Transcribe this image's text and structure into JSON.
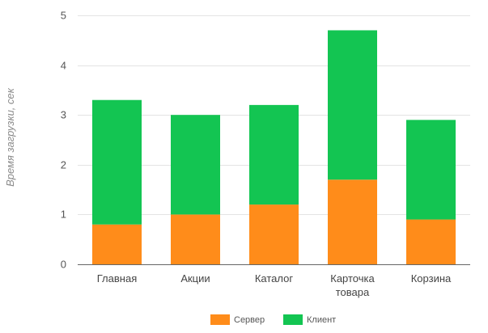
{
  "chart_data": {
    "type": "bar",
    "stacked": true,
    "title": "",
    "xlabel": "",
    "ylabel": "Время загрузки, сек",
    "ylim": [
      0,
      5
    ],
    "yticks": [
      0,
      1,
      2,
      3,
      4,
      5
    ],
    "grid": true,
    "legend_position": "bottom",
    "categories": [
      [
        "Главная"
      ],
      [
        "Акции"
      ],
      [
        "Каталог"
      ],
      [
        "Карточка",
        "товара"
      ],
      [
        "Корзина"
      ]
    ],
    "series": [
      {
        "name": "Сервер",
        "color": "#ff8c1a",
        "values": [
          0.8,
          1.0,
          1.2,
          1.7,
          0.9
        ]
      },
      {
        "name": "Клиент",
        "color": "#13c552",
        "values": [
          2.5,
          2.0,
          2.0,
          3.0,
          2.0
        ]
      }
    ]
  }
}
